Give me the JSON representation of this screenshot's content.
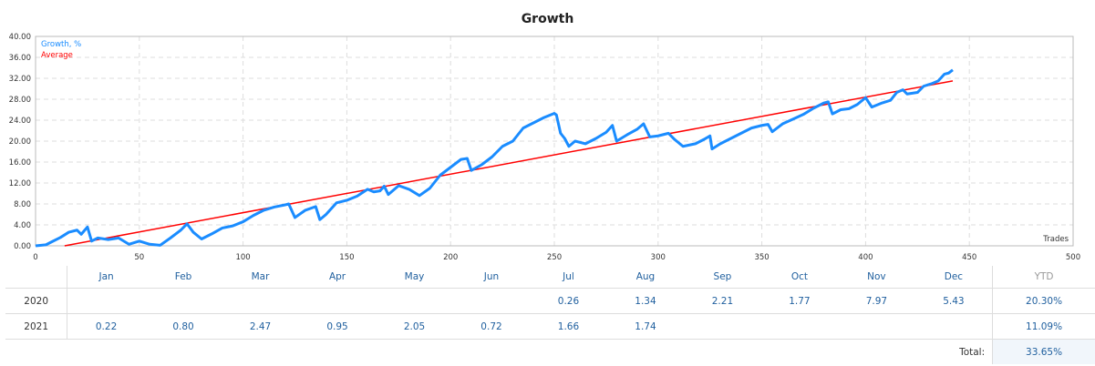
{
  "chart_data": {
    "type": "line",
    "title": "Growth",
    "xlabel": "Trades",
    "ylabel": "",
    "xlim": [
      0,
      500
    ],
    "ylim": [
      0,
      40
    ],
    "x_ticks": [
      "0",
      "50",
      "100",
      "150",
      "200",
      "250",
      "300",
      "350",
      "400",
      "450",
      "500"
    ],
    "y_ticks": [
      "0.00",
      "4.00",
      "8.00",
      "12.00",
      "16.00",
      "20.00",
      "24.00",
      "28.00",
      "32.00",
      "36.00",
      "40.00"
    ],
    "grid": true,
    "legend_position": "top-left",
    "series": [
      {
        "name": "Growth, %",
        "color": "#1a8cff",
        "points": [
          [
            0,
            0
          ],
          [
            5,
            0.2
          ],
          [
            8,
            0.8
          ],
          [
            12,
            1.6
          ],
          [
            16,
            2.6
          ],
          [
            20,
            3.0
          ],
          [
            22,
            2.2
          ],
          [
            25,
            3.6
          ],
          [
            27,
            0.9
          ],
          [
            30,
            1.5
          ],
          [
            35,
            1.2
          ],
          [
            40,
            1.5
          ],
          [
            45,
            0.3
          ],
          [
            50,
            0.9
          ],
          [
            55,
            0.3
          ],
          [
            60,
            0.1
          ],
          [
            65,
            1.5
          ],
          [
            70,
            3.0
          ],
          [
            73,
            4.2
          ],
          [
            76,
            2.6
          ],
          [
            80,
            1.3
          ],
          [
            85,
            2.3
          ],
          [
            90,
            3.4
          ],
          [
            95,
            3.8
          ],
          [
            100,
            4.6
          ],
          [
            105,
            5.8
          ],
          [
            110,
            6.8
          ],
          [
            115,
            7.4
          ],
          [
            120,
            7.8
          ],
          [
            122,
            8.0
          ],
          [
            125,
            5.4
          ],
          [
            130,
            6.8
          ],
          [
            135,
            7.5
          ],
          [
            137,
            5.0
          ],
          [
            140,
            6.0
          ],
          [
            145,
            8.2
          ],
          [
            150,
            8.7
          ],
          [
            155,
            9.5
          ],
          [
            160,
            10.8
          ],
          [
            163,
            10.3
          ],
          [
            166,
            10.5
          ],
          [
            168,
            11.4
          ],
          [
            170,
            9.8
          ],
          [
            175,
            11.5
          ],
          [
            180,
            10.8
          ],
          [
            185,
            9.6
          ],
          [
            190,
            11.0
          ],
          [
            195,
            13.5
          ],
          [
            200,
            15.0
          ],
          [
            205,
            16.5
          ],
          [
            208,
            16.7
          ],
          [
            210,
            14.4
          ],
          [
            215,
            15.5
          ],
          [
            220,
            17.0
          ],
          [
            225,
            19.0
          ],
          [
            230,
            20.0
          ],
          [
            235,
            22.5
          ],
          [
            240,
            23.5
          ],
          [
            245,
            24.5
          ],
          [
            250,
            25.3
          ],
          [
            251,
            25.0
          ],
          [
            253,
            21.5
          ],
          [
            255,
            20.5
          ],
          [
            257,
            19.0
          ],
          [
            260,
            20.0
          ],
          [
            265,
            19.5
          ],
          [
            270,
            20.5
          ],
          [
            275,
            21.7
          ],
          [
            278,
            23.0
          ],
          [
            280,
            20.0
          ],
          [
            285,
            21.2
          ],
          [
            290,
            22.3
          ],
          [
            293,
            23.3
          ],
          [
            296,
            20.8
          ],
          [
            300,
            21.0
          ],
          [
            305,
            21.5
          ],
          [
            308,
            20.3
          ],
          [
            312,
            19.0
          ],
          [
            318,
            19.5
          ],
          [
            322,
            20.3
          ],
          [
            325,
            21.0
          ],
          [
            326,
            18.5
          ],
          [
            330,
            19.5
          ],
          [
            335,
            20.5
          ],
          [
            340,
            21.5
          ],
          [
            345,
            22.5
          ],
          [
            350,
            23.0
          ],
          [
            353,
            23.2
          ],
          [
            355,
            21.8
          ],
          [
            360,
            23.3
          ],
          [
            365,
            24.2
          ],
          [
            370,
            25.1
          ],
          [
            375,
            26.3
          ],
          [
            380,
            27.3
          ],
          [
            382,
            27.5
          ],
          [
            384,
            25.2
          ],
          [
            388,
            26.0
          ],
          [
            392,
            26.2
          ],
          [
            396,
            27.0
          ],
          [
            400,
            28.3
          ],
          [
            403,
            26.5
          ],
          [
            408,
            27.3
          ],
          [
            412,
            27.8
          ],
          [
            415,
            29.3
          ],
          [
            418,
            29.8
          ],
          [
            420,
            29.0
          ],
          [
            425,
            29.3
          ],
          [
            428,
            30.5
          ],
          [
            432,
            31.0
          ],
          [
            435,
            31.5
          ],
          [
            438,
            32.8
          ],
          [
            440,
            33.0
          ],
          [
            442,
            33.6
          ]
        ]
      },
      {
        "name": "Average",
        "color": "#ff0000",
        "points": [
          [
            14,
            0
          ],
          [
            442,
            31.5
          ]
        ]
      }
    ]
  },
  "table": {
    "months": [
      "Jan",
      "Feb",
      "Mar",
      "Apr",
      "May",
      "Jun",
      "Jul",
      "Aug",
      "Sep",
      "Oct",
      "Nov",
      "Dec"
    ],
    "ytd_header": "YTD",
    "rows": [
      {
        "year": "2020",
        "values": [
          "",
          "",
          "",
          "",
          "",
          "",
          "0.26",
          "1.34",
          "2.21",
          "1.77",
          "7.97",
          "5.43"
        ],
        "ytd": "20.30%"
      },
      {
        "year": "2021",
        "values": [
          "0.22",
          "0.80",
          "2.47",
          "0.95",
          "2.05",
          "0.72",
          "1.66",
          "1.74",
          "",
          "",
          "",
          ""
        ],
        "ytd": "11.09%"
      }
    ],
    "total_label": "Total:",
    "total": "33.65%"
  }
}
